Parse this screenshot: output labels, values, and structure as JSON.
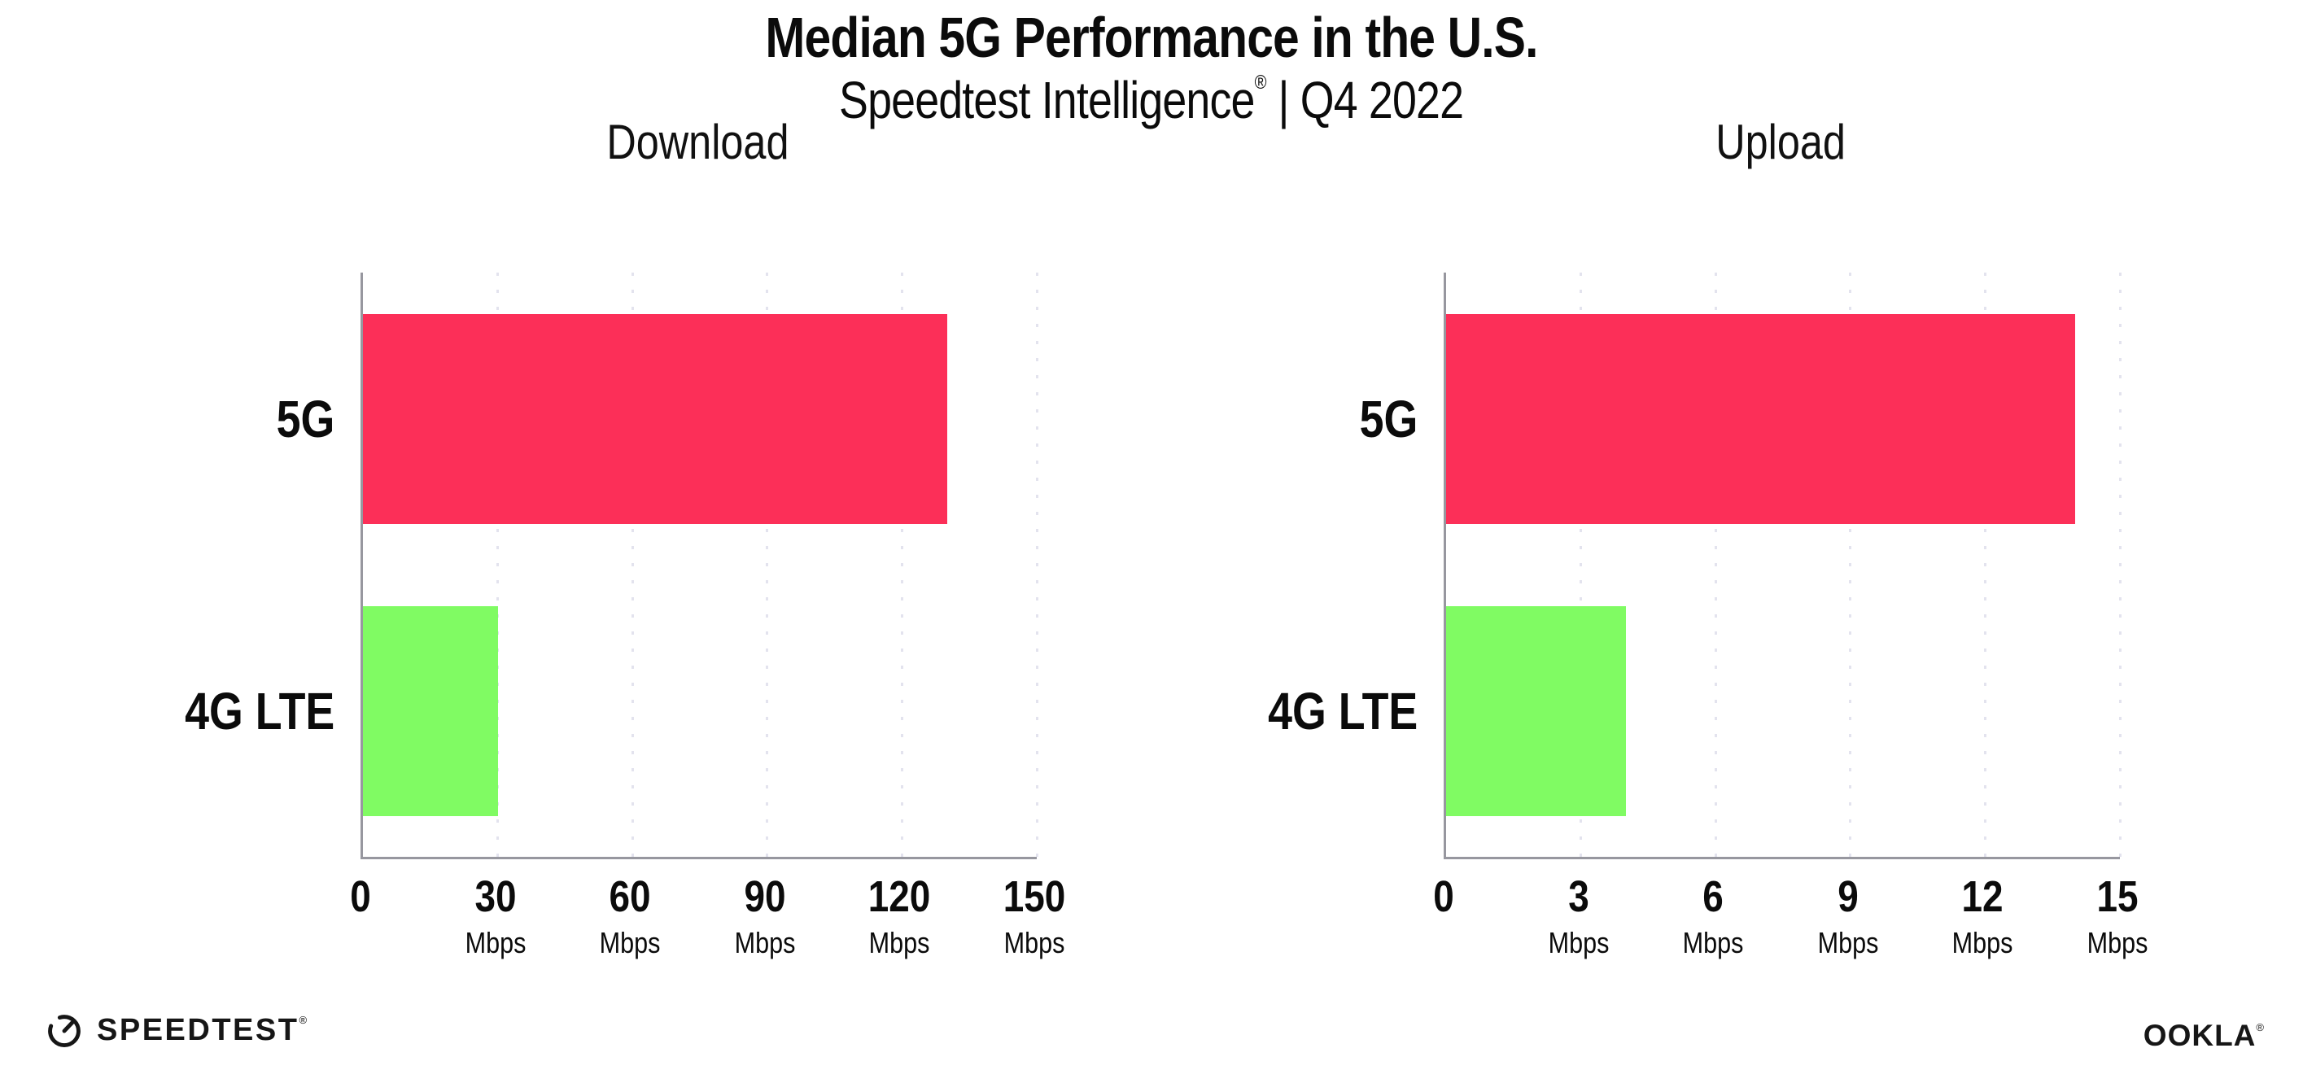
{
  "header": {
    "title": "Median 5G Performance in the U.S.",
    "subtitle_brand": "Speedtest Intelligence",
    "subtitle_registered": "®",
    "subtitle_separator": " | ",
    "subtitle_period": "Q4 2022"
  },
  "chart_data": [
    {
      "type": "bar",
      "orientation": "horizontal",
      "title": "Download",
      "categories": [
        "5G",
        "4G LTE"
      ],
      "values": [
        130,
        30
      ],
      "unit": "Mbps",
      "xlim": [
        0,
        150
      ],
      "xticks": [
        0,
        30,
        60,
        90,
        120,
        150
      ],
      "xtick_labels": [
        "0",
        "30",
        "60",
        "90",
        "120",
        "150"
      ],
      "bar_colors": [
        "#fc2f58",
        "#80fb63"
      ],
      "grid": "vertical-dotted",
      "legend": "none"
    },
    {
      "type": "bar",
      "orientation": "horizontal",
      "title": "Upload",
      "categories": [
        "5G",
        "4G LTE"
      ],
      "values": [
        14,
        4
      ],
      "unit": "Mbps",
      "xlim": [
        0,
        15
      ],
      "xticks": [
        0,
        3,
        6,
        9,
        12,
        15
      ],
      "xtick_labels": [
        "0",
        "3",
        "6",
        "9",
        "12",
        "15"
      ],
      "bar_colors": [
        "#fc2f58",
        "#80fb63"
      ],
      "grid": "vertical-dotted",
      "legend": "none"
    }
  ],
  "colors": {
    "bar_5g": "#fc2f58",
    "bar_4g_lte": "#80fb63",
    "axis": "#97979f",
    "gridline": "#e3e3ee",
    "text": "#0b0b0b"
  },
  "footer": {
    "speedtest_wordmark": "SPEEDTEST",
    "speedtest_mark": "®",
    "ookla_wordmark": "OOKLA",
    "ookla_mark": "®"
  }
}
